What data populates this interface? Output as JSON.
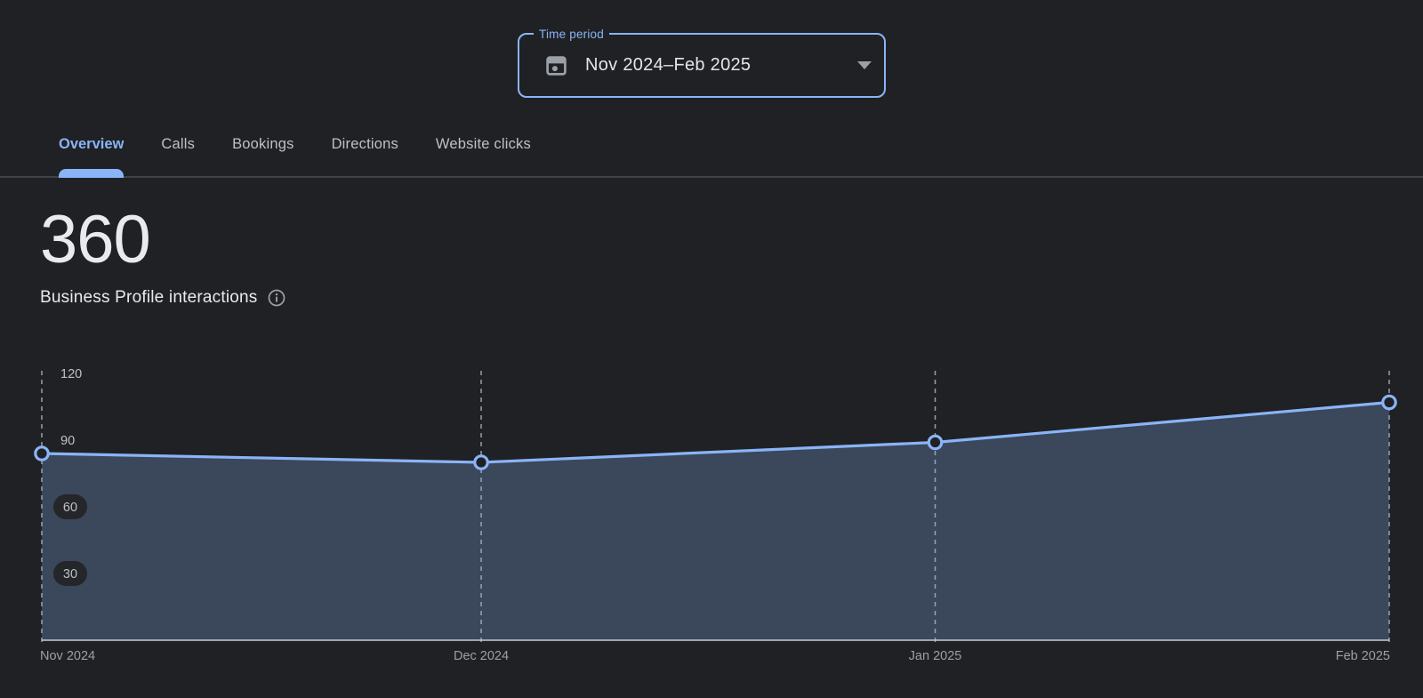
{
  "time_period": {
    "label": "Time period",
    "value": "Nov 2024–Feb 2025",
    "icons": {
      "left": "calendar-icon",
      "right": "chevron-down-icon"
    }
  },
  "tabs": [
    {
      "label": "Overview",
      "active": true
    },
    {
      "label": "Calls",
      "active": false
    },
    {
      "label": "Bookings",
      "active": false
    },
    {
      "label": "Directions",
      "active": false
    },
    {
      "label": "Website clicks",
      "active": false
    }
  ],
  "metric": {
    "value": "360",
    "label": "Business Profile interactions",
    "info_icon": "info-icon"
  },
  "colors": {
    "background": "#202124",
    "accent_blue": "#8ab4f8",
    "series_line": "#8ab4f8",
    "area_fill": "rgba(138,180,248,0.26)",
    "marker_fill": "#202124",
    "grid_dashed": "#9aa0a6",
    "baseline": "#c9ccd0",
    "divider": "#3f4347",
    "text_primary": "#e8eaed",
    "text_secondary": "#9aa0a6",
    "tick_label": "#bdc1c6",
    "pill_bg": "#24262a"
  },
  "chart_data": {
    "type": "area",
    "title": "Business Profile interactions",
    "categories": [
      "Nov 2024",
      "Dec 2024",
      "Jan 2025",
      "Feb 2025"
    ],
    "x_day_offsets": [
      0,
      30,
      61,
      92
    ],
    "values": [
      84,
      80,
      89,
      107
    ],
    "total_displayed": 360,
    "y_ticks": [
      30,
      60,
      90,
      120
    ],
    "ylim": [
      0,
      120
    ],
    "grid": "dashed vertical line at each month",
    "legend": "none",
    "x_label_alignment": "first left-aligned, last right-aligned"
  }
}
